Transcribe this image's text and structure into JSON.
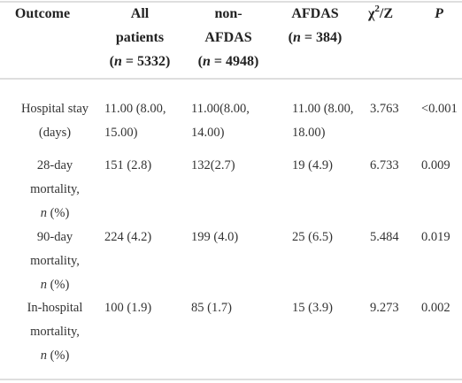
{
  "table": {
    "header": [
      [
        [
          "Outcome"
        ]
      ],
      [
        [
          "All"
        ],
        [
          "patients"
        ],
        [
          "(",
          {
            "italic": "n"
          },
          " = 5332)"
        ]
      ],
      [
        [
          "non-"
        ],
        [
          "AFDAS"
        ],
        [
          "(",
          {
            "italic": "n"
          },
          " = 4948)"
        ]
      ],
      [
        [
          "AFDAS"
        ],
        [
          "(",
          {
            "italic": "n"
          },
          " = 384)"
        ]
      ],
      [
        [
          "χ",
          {
            "sup": "2"
          },
          "/Z"
        ]
      ],
      [
        [
          {
            "italic": "P"
          }
        ]
      ]
    ],
    "rows": [
      [
        [
          [
            "Hospital stay"
          ],
          [
            "(days)"
          ]
        ],
        [
          [
            "11.00 (8.00,"
          ],
          [
            "15.00)"
          ]
        ],
        [
          [
            "11.00(8.00,"
          ],
          [
            "14.00)"
          ]
        ],
        [
          [
            "11.00 (8.00,"
          ],
          [
            "18.00)"
          ]
        ],
        [
          [
            "3.763"
          ]
        ],
        [
          [
            "<0.001"
          ]
        ]
      ],
      [
        [
          [
            "28-day"
          ],
          [
            "mortality,"
          ],
          [
            {
              "italic": "n"
            },
            " (%)"
          ]
        ],
        [
          [
            "151 (2.8)"
          ]
        ],
        [
          [
            "132(2.7)"
          ]
        ],
        [
          [
            "19 (4.9)"
          ]
        ],
        [
          [
            "6.733"
          ]
        ],
        [
          [
            "0.009"
          ]
        ]
      ],
      [
        [
          [
            "90-day"
          ],
          [
            "mortality,"
          ],
          [
            {
              "italic": "n"
            },
            " (%)"
          ]
        ],
        [
          [
            "224 (4.2)"
          ]
        ],
        [
          [
            "199 (4.0)"
          ]
        ],
        [
          [
            "25 (6.5)"
          ]
        ],
        [
          [
            "5.484"
          ]
        ],
        [
          [
            "0.019"
          ]
        ]
      ],
      [
        [
          [
            "In-hospital"
          ],
          [
            "mortality,"
          ],
          [
            {
              "italic": "n"
            },
            " (%)"
          ]
        ],
        [
          [
            "100 (1.9)"
          ]
        ],
        [
          [
            "85 (1.7)"
          ]
        ],
        [
          [
            "15 (3.9)"
          ]
        ],
        [
          [
            "9.273"
          ]
        ],
        [
          [
            "0.002"
          ]
        ]
      ]
    ]
  }
}
